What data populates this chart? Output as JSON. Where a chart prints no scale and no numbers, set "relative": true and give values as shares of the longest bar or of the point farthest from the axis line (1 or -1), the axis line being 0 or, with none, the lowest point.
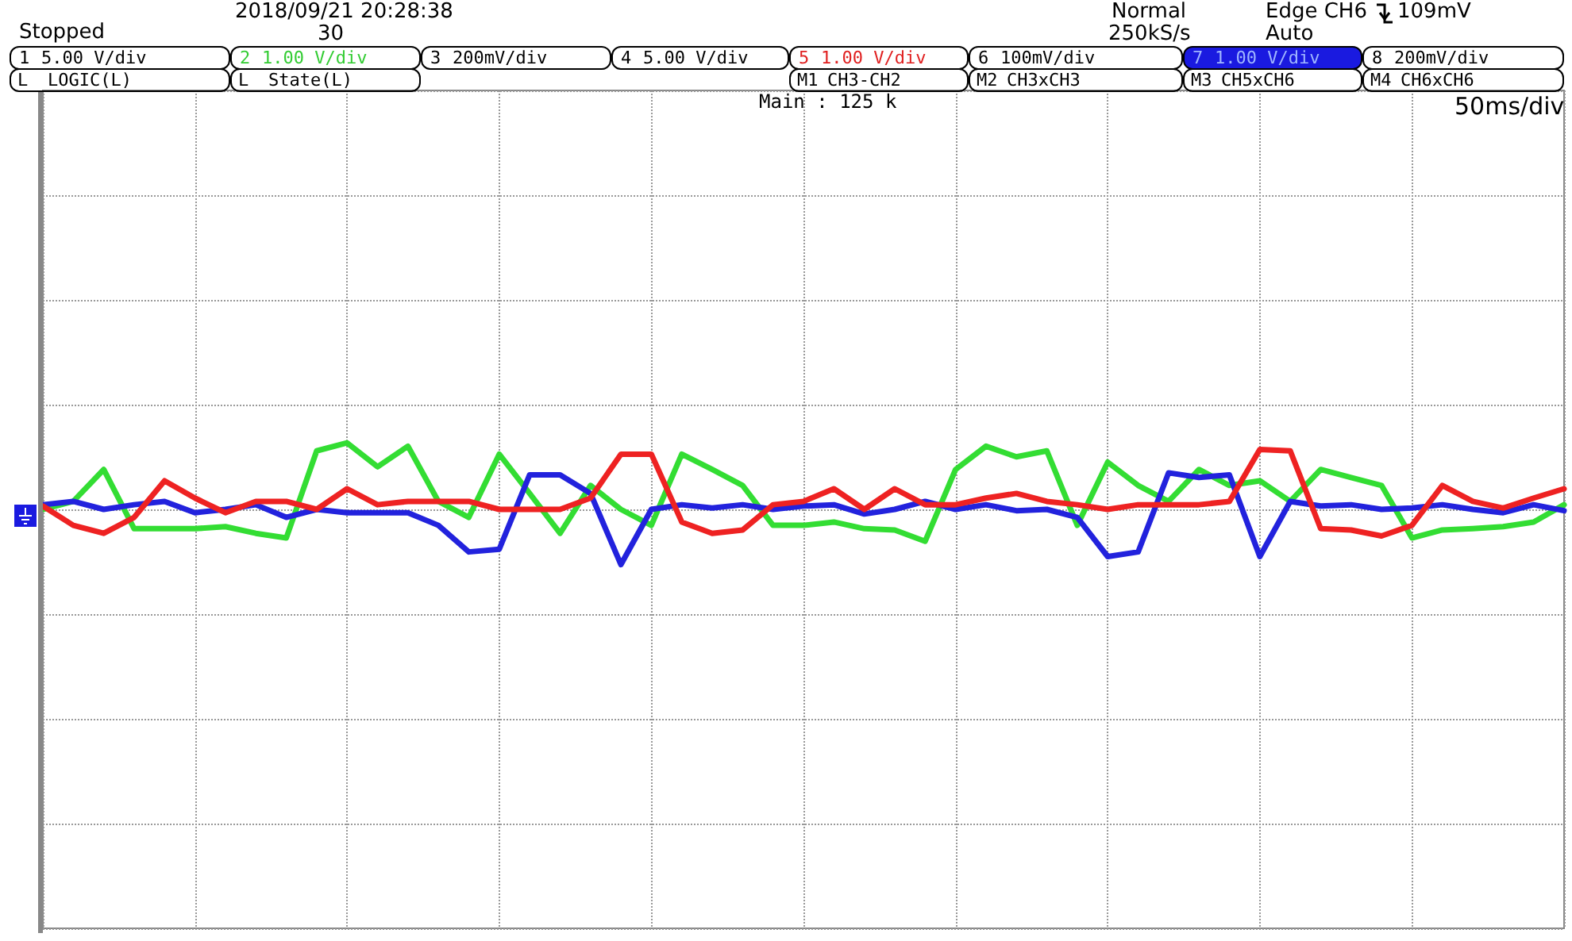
{
  "chart_data": {
    "type": "line",
    "relative": true,
    "grid": true,
    "marker": "none",
    "line_style": "solid",
    "categories": [
      null,
      null,
      null,
      null,
      null,
      null,
      null,
      null,
      null,
      null,
      null,
      null,
      null,
      null,
      null,
      null,
      null,
      null,
      null,
      null,
      null,
      null,
      null,
      null,
      null,
      null,
      null,
      null,
      null,
      null,
      null,
      null,
      null,
      null,
      null,
      null,
      null,
      null,
      null,
      null,
      null,
      null,
      null,
      null,
      null,
      null,
      null,
      null,
      null,
      null,
      null
    ],
    "series": [
      {
        "color": "#33dd33",
        "values": [
          0,
          0.12,
          0.6,
          -0.29,
          -0.29,
          -0.29,
          -0.26,
          -0.36,
          -0.43,
          0.88,
          1.0,
          0.64,
          0.95,
          0.12,
          -0.12,
          0.83,
          0.24,
          -0.36,
          0.36,
          0,
          -0.24,
          0.83,
          0.6,
          0.36,
          -0.24,
          -0.24,
          -0.19,
          -0.29,
          -0.31,
          -0.48,
          0.6,
          0.95,
          0.79,
          0.88,
          -0.24,
          0.71,
          0.36,
          0.12,
          0.6,
          0.36,
          0.43,
          0.12,
          0.6,
          0.48,
          0.36,
          -0.43,
          -0.31,
          -0.29,
          -0.26,
          -0.19,
          0.07
        ]
      },
      {
        "color": "#2222dd",
        "values": [
          0.07,
          0.12,
          0,
          0.07,
          0.12,
          -0.05,
          0,
          0.07,
          -0.12,
          0,
          -0.05,
          -0.05,
          -0.05,
          -0.24,
          -0.64,
          -0.6,
          0.52,
          0.52,
          0.24,
          -0.83,
          0,
          0.07,
          0.02,
          0.07,
          0,
          0.05,
          0.07,
          -0.07,
          0,
          0.12,
          0,
          0.07,
          -0.02,
          0,
          -0.12,
          -0.71,
          -0.64,
          0.55,
          0.48,
          0.52,
          -0.71,
          0.12,
          0.05,
          0.07,
          0,
          0.02,
          0.07,
          0,
          -0.05,
          0.07,
          -0.02
        ]
      },
      {
        "color": "#ee2222",
        "values": [
          0.05,
          -0.24,
          -0.36,
          -0.12,
          0.43,
          0.17,
          -0.05,
          0.12,
          0.12,
          0,
          0.31,
          0.07,
          0.12,
          0.12,
          0.12,
          0,
          0,
          0,
          0.17,
          0.83,
          0.83,
          -0.19,
          -0.36,
          -0.31,
          0.07,
          0.12,
          0.31,
          0,
          0.31,
          0.07,
          0.07,
          0.17,
          0.24,
          0.12,
          0.07,
          0,
          0.07,
          0.07,
          0.07,
          0.12,
          0.9,
          0.88,
          -0.29,
          -0.31,
          -0.4,
          -0.24,
          0.36,
          0.12,
          0.02,
          0.17,
          0.31
        ]
      }
    ],
    "annotations": [
      "Stopped",
      "2018/09/21 20:28:38",
      "30",
      "Normal",
      "250kS/s",
      "Edge CH6",
      "109mV",
      "Auto",
      "1",
      "5.00 V/div",
      "2",
      "1.00 V/div",
      "3",
      "200mV/div",
      "4",
      "5.00 V/div",
      "5",
      "1.00 V/div",
      "6",
      "100mV/div",
      "7",
      "1.00 V/div",
      "8",
      "200mV/div",
      "L",
      "LOGIC(L)",
      "L",
      "State(L)",
      "M1",
      "CH3-CH2",
      "M2",
      "CH3xCH3",
      "M3",
      "CH5xCH6",
      "M4",
      "CH6xCH6",
      "Main : 125 k",
      "50ms/div"
    ]
  }
}
